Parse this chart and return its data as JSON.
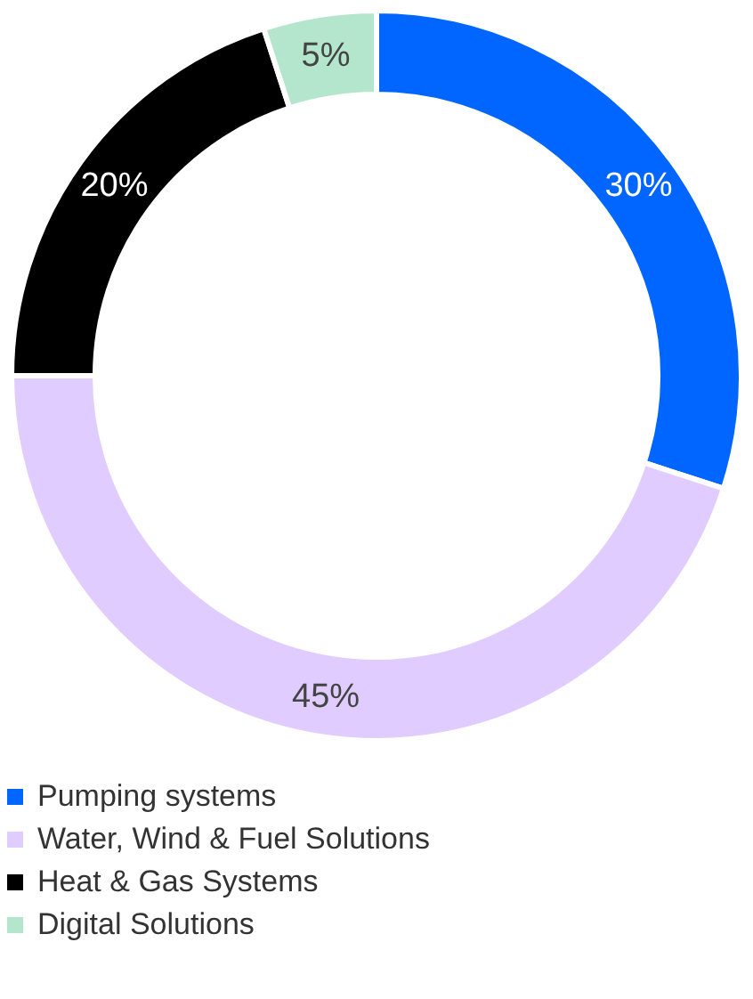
{
  "chart_data": {
    "type": "donut",
    "categories": [
      "Pumping systems",
      "Water, Wind & Fuel Solutions",
      "Heat & Gas Systems",
      "Digital Solutions"
    ],
    "values": [
      30,
      45,
      20,
      5
    ],
    "colors": [
      "#0066ff",
      "#e0ccff",
      "#000000",
      "#b3e6cc"
    ],
    "value_labels": [
      "30%",
      "45%",
      "20%",
      "5%"
    ],
    "legend": "bottom"
  }
}
